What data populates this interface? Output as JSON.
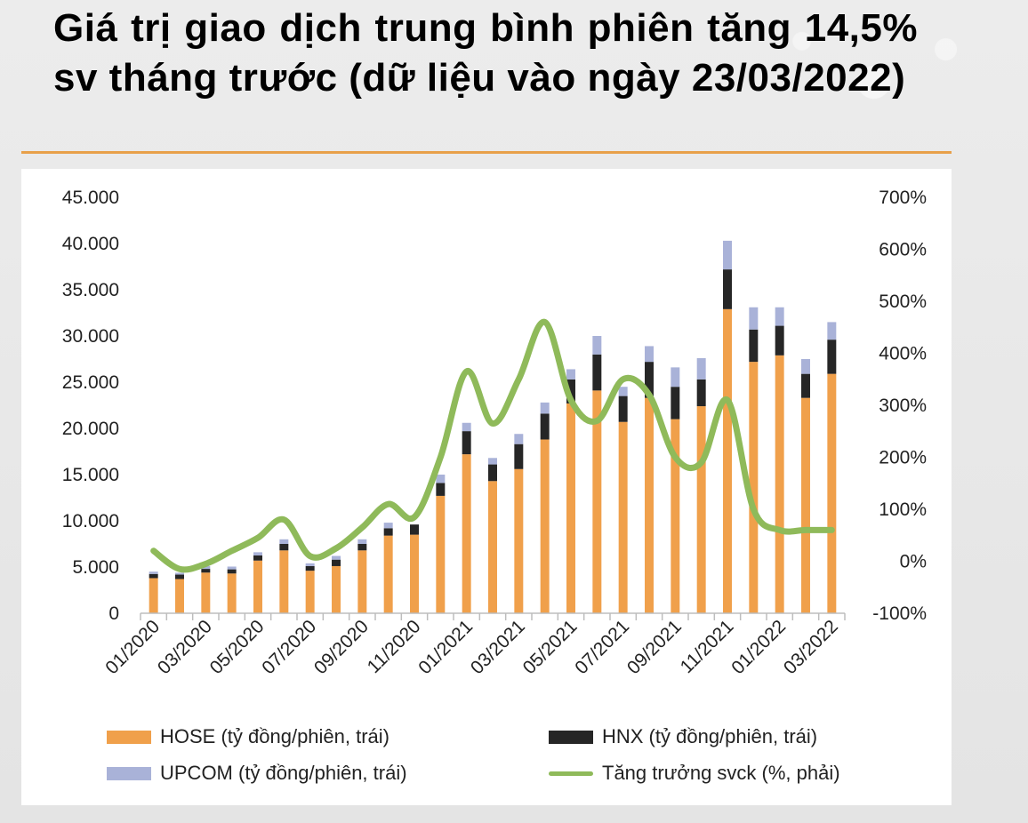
{
  "title": "Giá trị giao dịch trung bình phiên tăng 14,5% sv tháng trước (dữ liệu vào ngày 23/03/2022)",
  "chart_data": {
    "type": "bar",
    "stacked": true,
    "categories": [
      "01/2020",
      "02/2020",
      "03/2020",
      "04/2020",
      "05/2020",
      "06/2020",
      "07/2020",
      "08/2020",
      "09/2020",
      "10/2020",
      "11/2020",
      "12/2020",
      "01/2021",
      "02/2021",
      "03/2021",
      "04/2021",
      "05/2021",
      "06/2021",
      "07/2021",
      "08/2021",
      "09/2021",
      "10/2021",
      "11/2021",
      "12/2021",
      "01/2022",
      "02/2022",
      "03/2022"
    ],
    "x_tick_labels": [
      "01/2020",
      "03/2020",
      "05/2020",
      "07/2020",
      "09/2020",
      "11/2020",
      "01/2021",
      "03/2021",
      "05/2021",
      "07/2021",
      "09/2021",
      "11/2021",
      "01/2022",
      "03/2022"
    ],
    "y_left_ticks": [
      "0",
      "5.000",
      "10.000",
      "15.000",
      "20.000",
      "25.000",
      "30.000",
      "35.000",
      "40.000",
      "45.000"
    ],
    "y_right_ticks": [
      "-100%",
      "0%",
      "100%",
      "200%",
      "300%",
      "400%",
      "500%",
      "600%",
      "700%"
    ],
    "ylim_left": [
      0,
      45000
    ],
    "ylim_right": [
      -100,
      700
    ],
    "series": [
      {
        "name": "HOSE (tỷ đồng/phiên, trái)",
        "axis": "left",
        "color": "#f0a04b",
        "values": [
          3800,
          3700,
          4400,
          4300,
          5700,
          6800,
          4600,
          5100,
          6800,
          8400,
          8500,
          12700,
          17200,
          14300,
          15600,
          18800,
          22700,
          24100,
          20700,
          23300,
          21000,
          22400,
          32900,
          27200,
          27900,
          23300,
          25900
        ]
      },
      {
        "name": "HNX (tỷ đồng/phiên, trái)",
        "axis": "left",
        "color": "#262626",
        "values": [
          450,
          480,
          400,
          450,
          550,
          700,
          500,
          700,
          700,
          800,
          1100,
          1400,
          2500,
          1800,
          2700,
          2800,
          2600,
          3900,
          2800,
          3900,
          3500,
          2900,
          4300,
          3500,
          3200,
          2600,
          3700
        ]
      },
      {
        "name": "UPCOM (tỷ đồng/phiên, trái)",
        "axis": "left",
        "color": "#a9b2d8",
        "values": [
          250,
          200,
          300,
          300,
          350,
          500,
          300,
          400,
          500,
          600,
          0,
          900,
          900,
          700,
          1100,
          1200,
          1100,
          2000,
          1000,
          1700,
          2100,
          2300,
          3100,
          2400,
          2000,
          1600,
          1900
        ]
      },
      {
        "name": "Tăng trưởng svck (%, phải)",
        "axis": "right",
        "type": "line",
        "color": "#8fba5a",
        "values": [
          20,
          -15,
          -5,
          20,
          45,
          80,
          10,
          25,
          65,
          110,
          85,
          200,
          365,
          265,
          350,
          460,
          310,
          270,
          350,
          320,
          200,
          190,
          310,
          100,
          60,
          60,
          60
        ]
      }
    ],
    "legend_position": "bottom",
    "grid": false
  }
}
